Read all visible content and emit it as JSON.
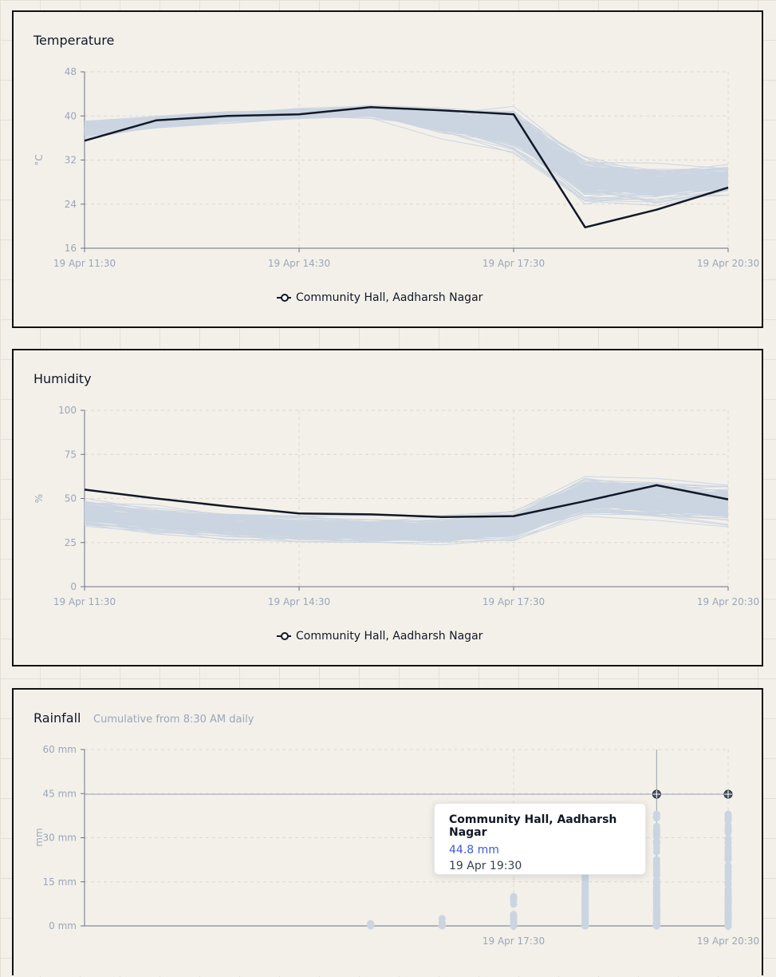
{
  "colors": {
    "background": "#f3f0ea",
    "highlight": "#111827",
    "others": "#cbd5e1",
    "axis": "#9aa6b8",
    "tooltip_value": "#3b5bdb"
  },
  "chart_data": [
    {
      "type": "line",
      "title": "Temperature",
      "ylabel": "°C",
      "ylim": [
        16,
        48
      ],
      "yticks": [
        16,
        24,
        32,
        40,
        48
      ],
      "x": [
        "19 Apr 11:30",
        "19 Apr 12:30",
        "19 Apr 13:30",
        "19 Apr 14:30",
        "19 Apr 15:30",
        "19 Apr 16:30",
        "19 Apr 17:30",
        "19 Apr 18:30",
        "19 Apr 19:30",
        "19 Apr 20:30"
      ],
      "xticks": [
        "19 Apr 11:30",
        "19 Apr 14:30",
        "19 Apr 17:30",
        "19 Apr 20:30"
      ],
      "background_series_count": 180,
      "series": [
        {
          "name": "Community Hall, Aadharsh Nagar",
          "values": [
            35.5,
            39.2,
            40,
            40.3,
            41.6,
            41,
            40.3,
            19.8,
            23,
            27
          ]
        }
      ],
      "legend": "bottom-center",
      "grid": true
    },
    {
      "type": "line",
      "title": "Humidity",
      "ylabel": "%",
      "ylim": [
        0,
        100
      ],
      "yticks": [
        0,
        25,
        50,
        75,
        100
      ],
      "x": [
        "19 Apr 11:30",
        "19 Apr 12:30",
        "19 Apr 13:30",
        "19 Apr 14:30",
        "19 Apr 15:30",
        "19 Apr 16:30",
        "19 Apr 17:30",
        "19 Apr 18:30",
        "19 Apr 19:30",
        "19 Apr 20:30"
      ],
      "xticks": [
        "19 Apr 11:30",
        "19 Apr 14:30",
        "19 Apr 17:30",
        "19 Apr 20:30"
      ],
      "background_series_count": 180,
      "series": [
        {
          "name": "Community Hall, Aadharsh Nagar",
          "values": [
            55,
            50,
            45.5,
            41.5,
            41,
            39.5,
            40,
            48.5,
            57.5,
            49.5
          ]
        }
      ],
      "legend": "bottom-center",
      "grid": true
    },
    {
      "type": "scatter",
      "title": "Rainfall",
      "subtitle": "Cumulative from 8:30 AM daily",
      "ylabel": "mm",
      "ylim": [
        0,
        60
      ],
      "yticks": [
        "0 mm",
        "15 mm",
        "30 mm",
        "45 mm",
        "60 mm"
      ],
      "x": [
        "19 Apr 11:30",
        "19 Apr 12:30",
        "19 Apr 13:30",
        "19 Apr 14:30",
        "19 Apr 15:30",
        "19 Apr 16:30",
        "19 Apr 17:30",
        "19 Apr 18:30",
        "19 Apr 19:30",
        "19 Apr 20:30"
      ],
      "xticks": [
        "19 Apr 17:30",
        "19 Apr 20:30"
      ],
      "highlight": {
        "name": "Community Hall, Aadharsh Nagar",
        "points": [
          {
            "x": "19 Apr 19:30",
            "y": 44.8
          },
          {
            "x": "19 Apr 20:30",
            "y": 44.8
          }
        ]
      },
      "tooltip": {
        "title": "Community Hall, Aadharsh Nagar",
        "value": "44.8 mm",
        "time": "19 Apr 19:30"
      },
      "grid": true
    }
  ]
}
